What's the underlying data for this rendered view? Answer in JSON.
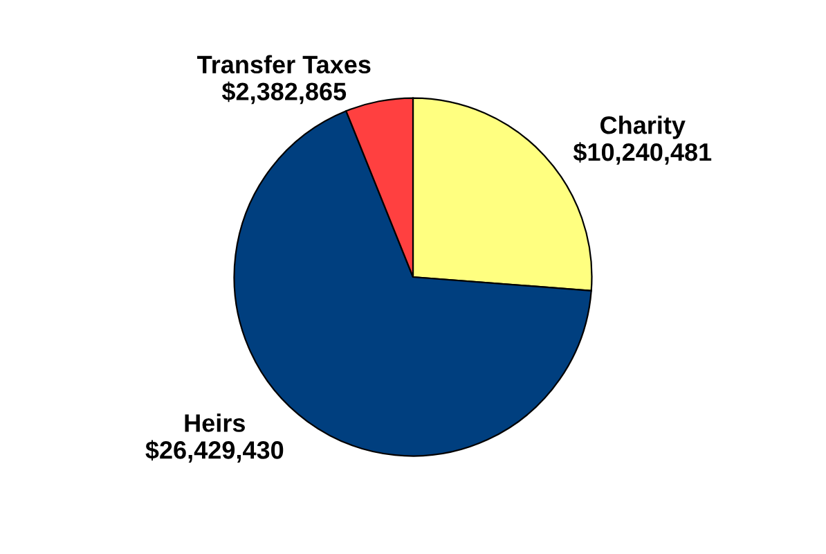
{
  "chart_data": {
    "type": "pie",
    "categories": [
      "Charity",
      "Heirs",
      "Transfer Taxes"
    ],
    "values": [
      10240481,
      26429430,
      2382865
    ],
    "value_labels": [
      "$10,240,481",
      "$26,429,430",
      "$2,382,865"
    ],
    "colors": [
      "#ffff80",
      "#003f7f",
      "#ff4040"
    ]
  }
}
